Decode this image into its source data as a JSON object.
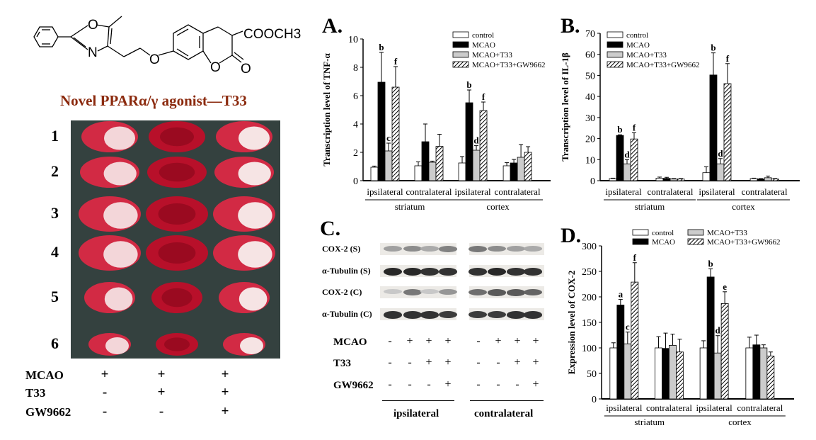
{
  "structure": {
    "atoms": {
      "oxazole_o": "O",
      "oxazole_n": "N",
      "ether_o": "O",
      "ring_o": "O",
      "carbonyl_o": "O",
      "ester": "COOCH3"
    }
  },
  "left_panel": {
    "title": "Novel PPARα/γ agonist—T33",
    "rows": [
      "1",
      "2",
      "3",
      "4",
      "5",
      "6"
    ],
    "conditions": [
      {
        "label": "MCAO",
        "signs": [
          "+",
          "+",
          "+"
        ]
      },
      {
        "label": "T33",
        "signs": [
          "-",
          "+",
          "+"
        ]
      },
      {
        "label": "GW9662",
        "signs": [
          "-",
          "-",
          "+"
        ]
      }
    ]
  },
  "panel_c": {
    "letter": "C.",
    "blots": [
      {
        "label": "COX-2 (S)",
        "intensity": [
          0.35,
          0.45,
          0.3,
          0.5,
          0.55,
          0.45,
          0.35,
          0.3
        ]
      },
      {
        "label": "α-Tubulin (S)",
        "intensity": [
          0.95,
          0.95,
          0.9,
          0.9,
          0.9,
          0.95,
          0.9,
          0.9
        ]
      },
      {
        "label": "COX-2 (C)",
        "intensity": [
          0.15,
          0.55,
          0.15,
          0.4,
          0.6,
          0.7,
          0.7,
          0.65
        ]
      },
      {
        "label": "α-Tubulin (C)",
        "intensity": [
          0.9,
          0.9,
          0.9,
          0.85,
          0.85,
          0.85,
          0.9,
          0.9
        ]
      }
    ],
    "conditions": [
      {
        "label": "MCAO",
        "signs": [
          "-",
          "+",
          "+",
          "+",
          "-",
          "+",
          "+",
          "+"
        ]
      },
      {
        "label": "T33",
        "signs": [
          "-",
          "-",
          "+",
          "+",
          "-",
          "-",
          "+",
          "+"
        ]
      },
      {
        "label": "GW9662",
        "signs": [
          "-",
          "-",
          "-",
          "+",
          "-",
          "-",
          "-",
          "+"
        ]
      }
    ],
    "regions": [
      "ipsilateral",
      "contralateral"
    ]
  },
  "chart_data": [
    {
      "letter": "A.",
      "type": "bar",
      "ylabel": "Transcription level of TNF-α",
      "ylim": [
        0,
        10
      ],
      "yticks": [
        "0",
        "2",
        "4",
        "6",
        "8",
        "10"
      ],
      "legend_position": "top-right",
      "series": [
        {
          "name": "control",
          "fill": "#ffffff"
        },
        {
          "name": "MCAO",
          "fill": "#000000"
        },
        {
          "name": "MCAO+T33",
          "fill": "#cccccc"
        },
        {
          "name": "MCAO+T33+GW9662",
          "fill": "hatch"
        }
      ],
      "groups": [
        {
          "label": "ipsilateral",
          "values": [
            0.95,
            6.95,
            2.1,
            6.6
          ],
          "errors": [
            0.08,
            2.1,
            0.55,
            1.45
          ],
          "letters": [
            "",
            "b",
            "c",
            "f"
          ]
        },
        {
          "label": "contralateral",
          "values": [
            1.05,
            2.75,
            1.3,
            2.42
          ],
          "errors": [
            0.28,
            1.25,
            0.08,
            0.85
          ],
          "letters": [
            "",
            "",
            "",
            ""
          ]
        },
        {
          "label": "ipsilateral",
          "values": [
            1.25,
            5.5,
            2.15,
            4.95
          ],
          "errors": [
            0.45,
            0.9,
            0.32,
            0.6
          ],
          "letters": [
            "",
            "b",
            "d",
            "f"
          ]
        },
        {
          "label": "contralateral",
          "values": [
            1.05,
            1.25,
            1.65,
            2.0
          ],
          "errors": [
            0.22,
            0.25,
            0.9,
            0.4
          ],
          "letters": [
            "",
            "",
            "",
            ""
          ]
        }
      ],
      "regions": [
        {
          "label": "striatum",
          "groups": [
            0,
            1
          ]
        },
        {
          "label": "cortex",
          "groups": [
            2,
            3
          ]
        }
      ]
    },
    {
      "letter": "B.",
      "type": "bar",
      "ylabel": "Transcription level of IL-1β",
      "ylim": [
        0,
        70
      ],
      "yticks": [
        "0",
        "10",
        "20",
        "30",
        "40",
        "50",
        "60",
        "70"
      ],
      "legend_position": "top-left",
      "series": [
        {
          "name": "control",
          "fill": "#ffffff"
        },
        {
          "name": "MCAO",
          "fill": "#000000"
        },
        {
          "name": "MCAO+T33",
          "fill": "#cccccc"
        },
        {
          "name": "MCAO+T33+GW9662",
          "fill": "hatch"
        }
      ],
      "groups": [
        {
          "label": "ipsilateral",
          "values": [
            1.0,
            21.5,
            8.0,
            19.8
          ],
          "errors": [
            0.2,
            0.3,
            2.0,
            3.0
          ],
          "letters": [
            "",
            "b",
            "d",
            "f"
          ]
        },
        {
          "label": "contralateral",
          "values": [
            1.2,
            1.1,
            0.8,
            0.8
          ],
          "errors": [
            0.5,
            0.5,
            0.2,
            0.2
          ],
          "letters": [
            "",
            "",
            "",
            ""
          ]
        },
        {
          "label": "ipsilateral",
          "values": [
            3.8,
            50.2,
            8.0,
            46.1
          ],
          "errors": [
            2.8,
            10.5,
            2.5,
            9.5
          ],
          "letters": [
            "",
            "b",
            "d",
            "f"
          ]
        },
        {
          "label": "contralateral",
          "values": [
            1.0,
            0.8,
            1.4,
            0.8
          ],
          "errors": [
            0.2,
            0.2,
            0.8,
            0.2
          ],
          "letters": [
            "",
            "",
            "",
            ""
          ]
        }
      ],
      "regions": [
        {
          "label": "striatum",
          "groups": [
            0,
            1
          ]
        },
        {
          "label": "cortex",
          "groups": [
            2,
            3
          ]
        }
      ]
    },
    {
      "letter": "D.",
      "type": "bar",
      "ylabel": "Expression level of COX-2",
      "ylim": [
        0,
        300
      ],
      "yticks": [
        "0",
        "50",
        "100",
        "150",
        "200",
        "250",
        "300"
      ],
      "legend_position": "top",
      "series": [
        {
          "name": "control",
          "fill": "#ffffff"
        },
        {
          "name": "MCAO",
          "fill": "#000000"
        },
        {
          "name": "MCAO+T33",
          "fill": "#cccccc"
        },
        {
          "name": "MCAO+T33+GW9662",
          "fill": "hatch"
        }
      ],
      "groups": [
        {
          "label": "ipsilateral",
          "values": [
            100,
            184,
            108,
            229
          ],
          "errors": [
            10,
            11,
            23,
            38
          ],
          "letters": [
            "",
            "a",
            "c",
            "f"
          ]
        },
        {
          "label": "contralateral",
          "values": [
            100,
            99,
            105,
            92
          ],
          "errors": [
            22,
            30,
            22,
            25
          ],
          "letters": [
            "",
            "",
            "",
            ""
          ]
        },
        {
          "label": "ipsilateral",
          "values": [
            100,
            239,
            90,
            187
          ],
          "errors": [
            14,
            16,
            34,
            23
          ],
          "letters": [
            "",
            "b",
            "d",
            "e"
          ]
        },
        {
          "label": "contralateral",
          "values": [
            100,
            106,
            100,
            84
          ],
          "errors": [
            21,
            19,
            6,
            8
          ],
          "letters": [
            "",
            "",
            "",
            ""
          ]
        }
      ],
      "regions": [
        {
          "label": "striatum",
          "groups": [
            0,
            1
          ]
        },
        {
          "label": "cortex",
          "groups": [
            2,
            3
          ]
        }
      ]
    }
  ]
}
